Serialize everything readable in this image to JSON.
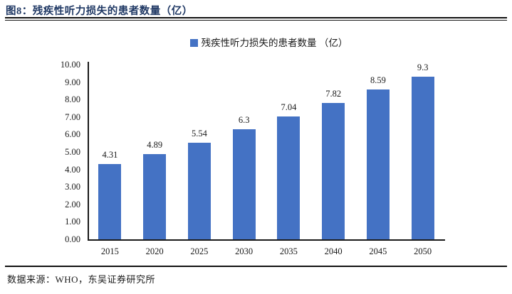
{
  "header": {
    "title": "图8：残疾性听力损失的患者数量（亿）"
  },
  "chart_data": {
    "type": "bar",
    "title": "残疾性听力损失的患者数量（亿）",
    "legend": "残疾性听力损失的患者数量 （亿）",
    "categories": [
      "2015",
      "2020",
      "2025",
      "2030",
      "2035",
      "2040",
      "2045",
      "2050"
    ],
    "values": [
      4.31,
      4.89,
      5.54,
      6.3,
      7.04,
      7.82,
      8.59,
      9.3
    ],
    "value_labels": [
      "4.31",
      "4.89",
      "5.54",
      "6.3",
      "7.04",
      "7.82",
      "8.59",
      "9.3"
    ],
    "xlabel": "",
    "ylabel": "",
    "ylim": [
      0,
      10
    ],
    "ytick_labels": [
      "0.00",
      "1.00",
      "2.00",
      "3.00",
      "4.00",
      "5.00",
      "6.00",
      "7.00",
      "8.00",
      "9.00",
      "10.00"
    ],
    "grid": false,
    "legend_position": "top-center",
    "bar_color": "#4472C4",
    "axis_color": "#1a1a1a"
  },
  "footer": {
    "source": "数据来源：WHO，东吴证券研究所"
  }
}
